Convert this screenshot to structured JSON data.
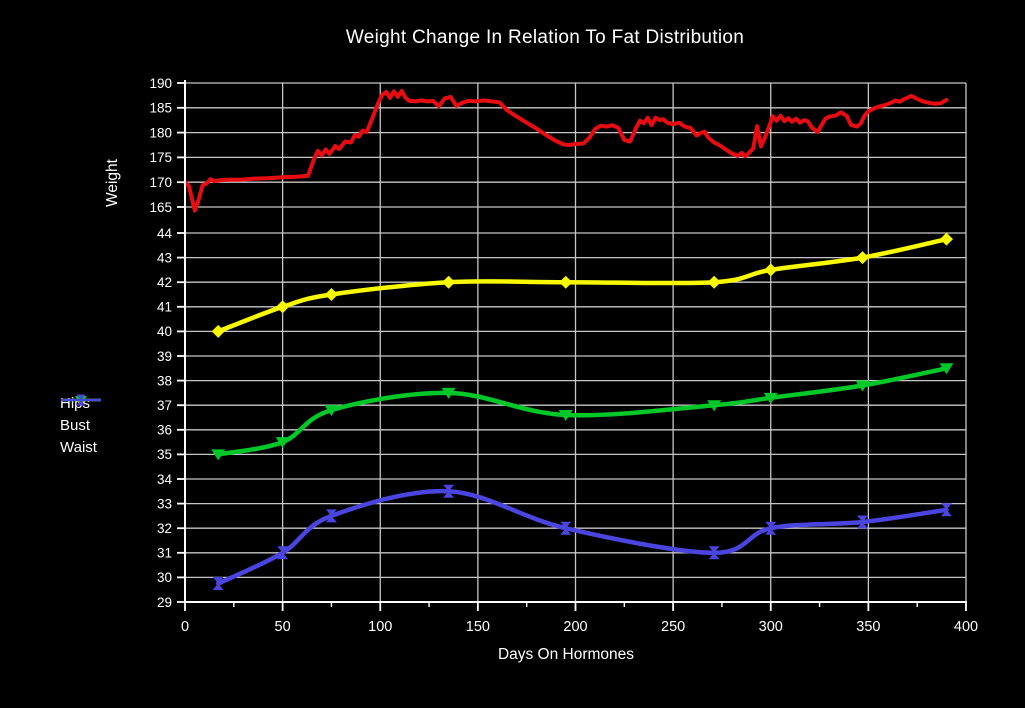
{
  "page": {
    "background": "#000000"
  },
  "colors": {
    "background": "#000000",
    "grid": "#c6c6c6",
    "axis": "#ffffff",
    "text": "#ffffff",
    "weight_series": "#e60c12",
    "hips_series": "#f8f800",
    "bust_series": "#00c828",
    "waist_series": "#4b45e0"
  },
  "chart_data": {
    "type": "line",
    "title": "Weight Change In Relation To Fat Distribution",
    "xlabel": "Days On Hormones",
    "ylabel": "Weight",
    "grid": true,
    "legend": {
      "position": "left",
      "items": [
        "Hips",
        "Bust",
        "Waist"
      ]
    },
    "x_axis": {
      "label": "Days On Hormones",
      "range": [
        0,
        400
      ],
      "ticks": [
        0,
        50,
        100,
        150,
        200,
        250,
        300,
        350,
        400
      ],
      "minor_tick_step": 25
    },
    "y_axis_weight": {
      "label": "Weight",
      "range": [
        165,
        190
      ],
      "ticks": [
        190,
        185,
        180,
        175,
        170,
        165
      ]
    },
    "y_axis_measure": {
      "range": [
        29,
        44
      ],
      "ticks": [
        44,
        43,
        42,
        41,
        40,
        39,
        38,
        37,
        36,
        35,
        34,
        33,
        32,
        31,
        30,
        29
      ]
    },
    "series": [
      {
        "name": "Weight",
        "axis": "weight",
        "color": "#e60c12",
        "marker": "none",
        "smooth": false,
        "width": 4,
        "in_legend": false,
        "x": [
          0,
          2,
          5,
          7,
          9,
          11,
          13,
          15,
          18,
          22,
          28,
          35,
          42,
          50,
          57,
          63,
          66,
          68,
          70,
          72,
          74,
          77,
          79,
          82,
          85,
          87,
          89,
          91,
          93,
          95,
          97,
          99,
          101,
          103,
          105,
          107,
          109,
          111,
          113,
          115,
          118,
          121,
          124,
          127,
          130,
          133,
          136,
          139,
          142,
          145,
          149,
          153,
          157,
          161,
          165,
          170,
          175,
          180,
          185,
          190,
          194,
          197,
          200,
          204,
          207,
          210,
          213,
          216,
          219,
          222,
          225,
          228,
          231,
          233,
          235,
          237,
          239,
          241,
          243,
          245,
          247,
          250,
          253,
          256,
          259,
          262,
          264,
          266,
          268,
          271,
          274,
          277,
          280,
          283,
          285,
          287,
          289,
          291,
          293,
          295,
          297,
          299,
          301,
          303,
          305,
          307,
          309,
          311,
          313,
          315,
          317,
          319,
          321,
          324,
          326,
          328,
          330,
          333,
          336,
          339,
          341,
          344,
          346,
          348,
          350,
          353,
          356,
          359,
          362,
          364,
          366,
          368,
          370,
          372,
          375,
          378,
          381,
          384,
          387,
          390
        ],
        "y": [
          170,
          169.2,
          164.3,
          166.5,
          169.4,
          169.7,
          170.6,
          170.2,
          170.4,
          170.5,
          170.5,
          170.7,
          170.8,
          171,
          171.1,
          171.3,
          174.6,
          176.3,
          175.4,
          176.6,
          175.7,
          177.3,
          176.7,
          178.2,
          178,
          179.5,
          179.2,
          180.4,
          180.1,
          182,
          184,
          186,
          187.6,
          188.2,
          187,
          188.3,
          187.2,
          188.4,
          187,
          186.4,
          186.3,
          186.5,
          186.3,
          186.4,
          185.3,
          186.9,
          187.2,
          185.4,
          186,
          186.4,
          186.3,
          186.5,
          186.3,
          186.1,
          184.5,
          183.2,
          182,
          180.8,
          179.5,
          178.3,
          177.6,
          177.5,
          177.7,
          177.8,
          178.9,
          180.7,
          181.4,
          181.2,
          181.5,
          180.9,
          178.5,
          178.2,
          180.9,
          182.4,
          181.9,
          183,
          181.5,
          183,
          182.5,
          182.7,
          182,
          181.7,
          182,
          181.2,
          180.9,
          179.4,
          179.9,
          180.2,
          179,
          178,
          177.4,
          176.6,
          175.8,
          175.3,
          175.9,
          175.2,
          176,
          176.8,
          181.3,
          177.2,
          179,
          181,
          183.3,
          182.4,
          183.4,
          182.3,
          182.9,
          182.2,
          182.8,
          182,
          182.5,
          182.3,
          181,
          180.1,
          181.5,
          182.8,
          183.2,
          183.4,
          184.1,
          183.3,
          181.6,
          181.2,
          181.8,
          183.4,
          184.3,
          184.9,
          185.3,
          185.6,
          186.1,
          186.5,
          186.2,
          186.7,
          187,
          187.4,
          186.8,
          186.3,
          186,
          185.8,
          185.9,
          186.6
        ]
      },
      {
        "name": "Hips",
        "axis": "measure",
        "color": "#f8f800",
        "marker": "diamond",
        "smooth": true,
        "width": 4.5,
        "in_legend": true,
        "x": [
          17,
          50,
          75,
          135,
          195,
          271,
          300,
          347,
          390
        ],
        "y": [
          40,
          41,
          41.5,
          42,
          42,
          42,
          42.5,
          43,
          43.75
        ]
      },
      {
        "name": "Bust",
        "axis": "measure",
        "color": "#00c828",
        "marker": "triangle-down",
        "smooth": true,
        "width": 4.5,
        "in_legend": true,
        "x": [
          17,
          50,
          75,
          135,
          195,
          271,
          300,
          347,
          390
        ],
        "y": [
          35,
          35.5,
          36.8,
          37.5,
          36.6,
          37,
          37.3,
          37.8,
          38.5
        ]
      },
      {
        "name": "Waist",
        "axis": "measure",
        "color": "#4b45e0",
        "marker": "hourglass",
        "smooth": true,
        "width": 4.5,
        "in_legend": true,
        "x": [
          17,
          50,
          75,
          135,
          195,
          271,
          300,
          347,
          390
        ],
        "y": [
          29.75,
          31,
          32.5,
          33.5,
          32,
          31,
          32,
          32.25,
          32.75
        ]
      }
    ]
  }
}
